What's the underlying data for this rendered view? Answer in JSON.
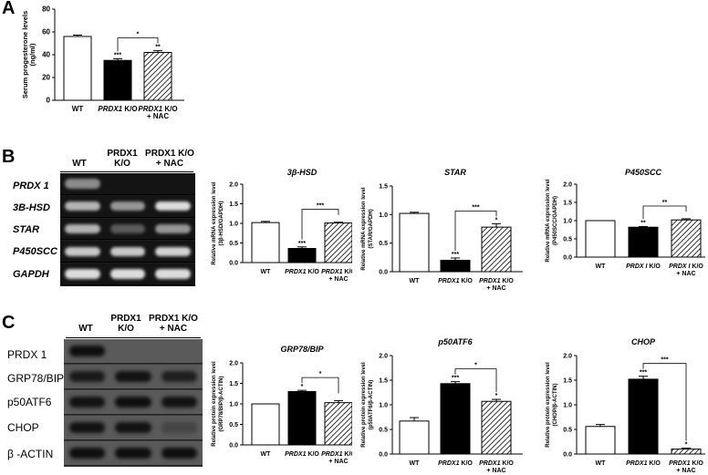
{
  "panels": {
    "A": "A",
    "B": "B",
    "C": "C"
  },
  "chart_data": [
    {
      "id": "progesterone",
      "type": "bar",
      "title": "",
      "ylabel_lines": [
        "Serum progesterone levels",
        "(ng/ml)"
      ],
      "categories": [
        [
          "WT"
        ],
        [
          "PRDX1 K/O"
        ],
        [
          "PRDX1 K/O",
          "+ NAC"
        ]
      ],
      "values": [
        56,
        35,
        42
      ],
      "errors": [
        1.2,
        1.5,
        1.5
      ],
      "ylim": [
        0,
        80
      ],
      "yticks": [
        "0",
        "20",
        "40",
        "60",
        "80"
      ],
      "bar_marks": [
        "",
        "***",
        "**"
      ],
      "bracket": {
        "from": 1,
        "to": 2,
        "label": "*"
      }
    },
    {
      "id": "3bhsd",
      "type": "bar",
      "title": "3β-HSD",
      "ylabel_lines": [
        "Relative mRNA expression level",
        "(3β-HSD/GAPDH)"
      ],
      "categories": [
        [
          "WT"
        ],
        [
          "PRDX1 K/O"
        ],
        [
          "PRDX1 K/O",
          "+ NAC"
        ]
      ],
      "values": [
        1.02,
        0.36,
        1.01
      ],
      "errors": [
        0.03,
        0.04,
        0.02
      ],
      "ylim": [
        0,
        2.0
      ],
      "yticks": [
        "0.0",
        "0.5",
        "1.0",
        "1.5",
        "2.0"
      ],
      "bar_marks": [
        "",
        "***",
        ""
      ],
      "bracket": {
        "from": 1,
        "to": 2,
        "label": "***"
      }
    },
    {
      "id": "star",
      "type": "bar",
      "title": "STAR",
      "ylabel_lines": [
        "Relative mRNA expression level",
        "(STAR/GAPDH)"
      ],
      "categories": [
        [
          "WT"
        ],
        [
          "PRDX1 K/O"
        ],
        [
          "PRDX1 K/O",
          "+ NAC"
        ]
      ],
      "values": [
        1.02,
        0.2,
        0.78
      ],
      "errors": [
        0.02,
        0.04,
        0.06
      ],
      "ylim": [
        0,
        1.5
      ],
      "yticks": [
        "0.0",
        "0.5",
        "1.0",
        "1.5"
      ],
      "bar_marks": [
        "",
        "***",
        "*"
      ],
      "bracket": {
        "from": 1,
        "to": 2,
        "label": "***"
      }
    },
    {
      "id": "p450scc",
      "type": "bar",
      "title": "P450SCC",
      "ylabel_lines": [
        "Relative mRNA expression level",
        "(P450SCC/GAPDH)"
      ],
      "categories": [
        [
          "WT"
        ],
        [
          "PRDX I K/O"
        ],
        [
          "PRDX I K/O",
          "+ NAC"
        ]
      ],
      "values": [
        1.0,
        0.82,
        1.02
      ],
      "errors": [
        0.0,
        0.02,
        0.03
      ],
      "ylim": [
        0,
        2.0
      ],
      "yticks": [
        "0.0",
        "0.5",
        "1.0",
        "1.5",
        "2.0"
      ],
      "bar_marks": [
        "",
        "**",
        ""
      ],
      "bracket": {
        "from": 1,
        "to": 2,
        "label": "**"
      }
    },
    {
      "id": "grp78",
      "type": "bar",
      "title": "GRP78/BIP",
      "ylabel_lines": [
        "Relative protein expression level",
        "(GRP78/BIP/β-ACTIN)"
      ],
      "categories": [
        [
          "WT"
        ],
        [
          "PRDX1 K/O"
        ],
        [
          "PRDX1 K/O",
          "+ NAC"
        ]
      ],
      "values": [
        1.0,
        1.3,
        1.03
      ],
      "errors": [
        0.0,
        0.03,
        0.05
      ],
      "ylim": [
        0,
        2.0
      ],
      "yticks": [
        "0.0",
        "0.5",
        "1.0",
        "1.5",
        "2.0"
      ],
      "bar_marks": [
        "",
        "*",
        ""
      ],
      "bracket": {
        "from": 1,
        "to": 2,
        "label": "*"
      }
    },
    {
      "id": "p50atf6",
      "type": "bar",
      "title": "p50ATF6",
      "ylabel_lines": [
        "Relative protein expression level",
        "(p50ATF6/β-ACTIN)"
      ],
      "categories": [
        [
          "WT"
        ],
        [
          "PRDX1 K/O"
        ],
        [
          "PRDX1 K/O",
          "+ NAC"
        ]
      ],
      "values": [
        0.67,
        1.43,
        1.07
      ],
      "errors": [
        0.07,
        0.04,
        0.04
      ],
      "ylim": [
        0,
        2.0
      ],
      "yticks": [
        "0.0",
        "0.5",
        "1.0",
        "1.5",
        "2.0"
      ],
      "bar_marks": [
        "",
        "***",
        "*"
      ],
      "bracket": {
        "from": 1,
        "to": 2,
        "label": "*"
      }
    },
    {
      "id": "chop",
      "type": "bar",
      "title": "CHOP",
      "ylabel_lines": [
        "Relative protein expression level",
        "(CHOP/β-ACTIN)"
      ],
      "categories": [
        [
          "WT"
        ],
        [
          "PRDX1 K/O"
        ],
        [
          "PRDX1 K/O",
          "+ NAC"
        ]
      ],
      "values": [
        0.56,
        1.52,
        0.1
      ],
      "errors": [
        0.04,
        0.06,
        0.02
      ],
      "ylim": [
        0,
        2.0
      ],
      "yticks": [
        "0.0",
        "0.5",
        "1.0",
        "1.5",
        "2.0"
      ],
      "bar_marks": [
        "",
        "***",
        "*"
      ],
      "bracket": {
        "from": 1,
        "to": 2,
        "label": "***"
      }
    }
  ],
  "gel_b": {
    "lanes": [
      "WT",
      "PRDX1 K/O",
      "PRDX1 K/O + NAC"
    ],
    "rows": [
      "PRDX 1",
      "3B-HSD",
      "STAR",
      "P450SCC",
      "GAPDH"
    ],
    "band_intensity": [
      [
        0.5,
        0.0,
        0.0
      ],
      [
        0.7,
        0.55,
        0.9
      ],
      [
        0.7,
        0.25,
        0.55
      ],
      [
        0.8,
        0.8,
        0.85
      ],
      [
        0.9,
        0.9,
        0.9
      ]
    ]
  },
  "blot_c": {
    "lanes": [
      "WT",
      "PRDX1 K/O",
      "PRDX1 K/O + NAC"
    ],
    "rows": [
      "PRDX 1",
      "GRP78/BIP",
      "p50ATF6",
      "CHOP",
      "β -ACTIN"
    ],
    "band_intensity": [
      [
        0.9,
        0.0,
        0.0
      ],
      [
        0.75,
        0.85,
        0.7
      ],
      [
        0.85,
        0.9,
        0.85
      ],
      [
        0.85,
        0.85,
        0.25
      ],
      [
        0.9,
        0.9,
        0.9
      ]
    ]
  },
  "colors": {
    "wt": "#ffffff",
    "ko": "#000000",
    "nac_hatch": "#000000",
    "gel_bg": "#141414",
    "blot_bg": "#5a5a5a"
  }
}
